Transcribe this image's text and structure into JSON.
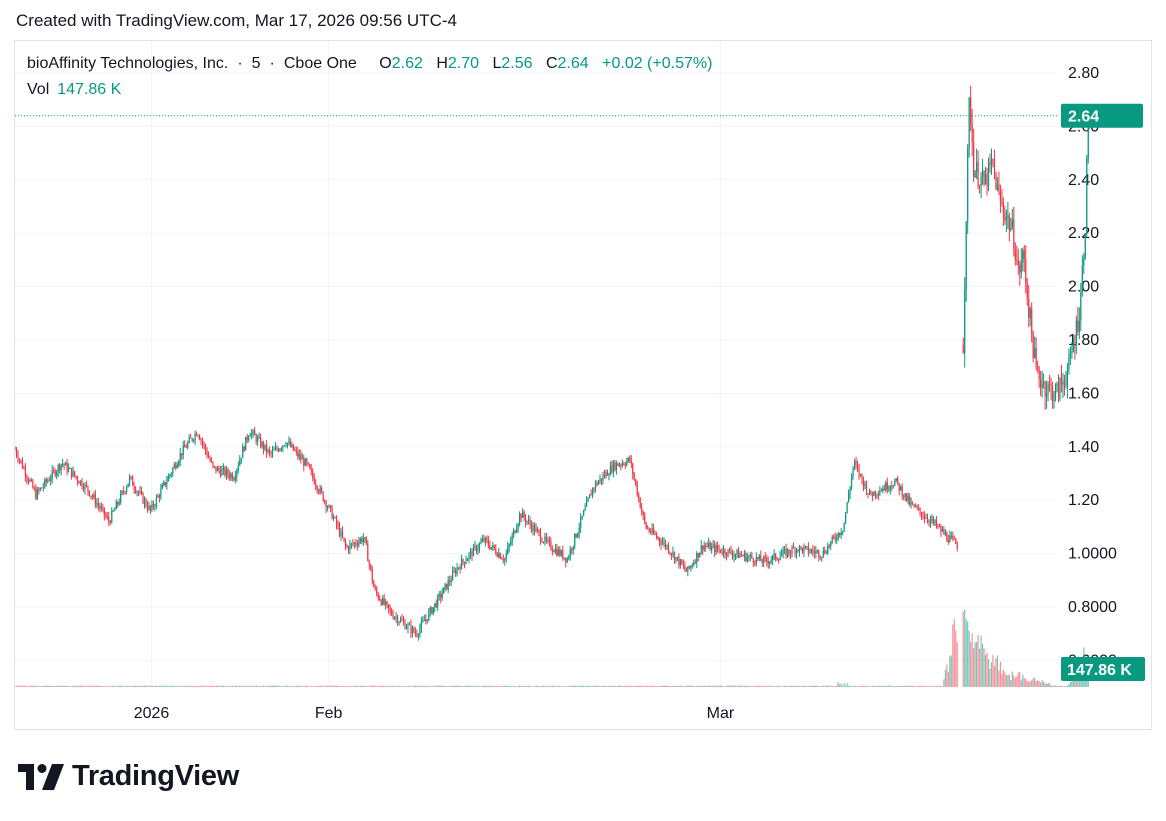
{
  "caption": "Created with TradingView.com, Mar 17, 2026 09:56 UTC-4",
  "legend": {
    "name": "bioAffinity Technologies, Inc.",
    "interval": "5",
    "exchange": "Cboe One",
    "o_label": "O",
    "o": "2.62",
    "h_label": "H",
    "h": "2.70",
    "l_label": "L",
    "l": "2.56",
    "c_label": "C",
    "c": "2.64",
    "change": "+0.02 (+0.57%)",
    "vol_label": "Vol",
    "vol": "147.86 K"
  },
  "brand": "TradingView",
  "colors": {
    "up": "#089981",
    "down": "#f23645",
    "grid": "#f0f3fa",
    "text": "#131722"
  },
  "chart_data": {
    "type": "candlestick",
    "price_ticks": [
      "2.80",
      "2.60",
      "2.40",
      "2.20",
      "2.00",
      "1.80",
      "1.60",
      "1.40",
      "1.20",
      "1.0000",
      "0.8000",
      "0.6000"
    ],
    "ylim": [
      0.5,
      2.92
    ],
    "x_ticks": [
      "2026",
      "Feb",
      "Mar"
    ],
    "last_price": 2.64,
    "last_price_label": "2.64",
    "last_volume_label": "147.86 K",
    "close_path": [
      [
        0.0,
        1.39
      ],
      [
        0.02,
        1.22
      ],
      [
        0.045,
        1.34
      ],
      [
        0.07,
        1.24
      ],
      [
        0.09,
        1.12
      ],
      [
        0.11,
        1.28
      ],
      [
        0.13,
        1.16
      ],
      [
        0.16,
        1.38
      ],
      [
        0.175,
        1.46
      ],
      [
        0.19,
        1.32
      ],
      [
        0.21,
        1.29
      ],
      [
        0.225,
        1.46
      ],
      [
        0.245,
        1.37
      ],
      [
        0.26,
        1.42
      ],
      [
        0.28,
        1.33
      ],
      [
        0.305,
        1.14
      ],
      [
        0.318,
        1.02
      ],
      [
        0.335,
        1.06
      ],
      [
        0.345,
        0.86
      ],
      [
        0.36,
        0.78
      ],
      [
        0.385,
        0.7
      ],
      [
        0.405,
        0.82
      ],
      [
        0.425,
        0.95
      ],
      [
        0.45,
        1.05
      ],
      [
        0.47,
        0.98
      ],
      [
        0.485,
        1.15
      ],
      [
        0.51,
        1.04
      ],
      [
        0.53,
        0.98
      ],
      [
        0.555,
        1.25
      ],
      [
        0.575,
        1.33
      ],
      [
        0.59,
        1.35
      ],
      [
        0.605,
        1.1
      ],
      [
        0.625,
        1.03
      ],
      [
        0.645,
        0.93
      ],
      [
        0.66,
        1.03
      ],
      [
        0.69,
        1.0
      ],
      [
        0.72,
        0.97
      ],
      [
        0.75,
        1.02
      ],
      [
        0.775,
        1.0
      ],
      [
        0.795,
        1.1
      ],
      [
        0.805,
        1.34
      ],
      [
        0.82,
        1.22
      ],
      [
        0.845,
        1.27
      ],
      [
        0.86,
        1.18
      ],
      [
        0.88,
        1.12
      ],
      [
        0.895,
        1.06
      ],
      [
        0.905,
        1.03
      ]
    ],
    "spike_path": [
      [
        0.91,
        1.78
      ],
      [
        0.913,
        2.3
      ],
      [
        0.916,
        2.72
      ],
      [
        0.92,
        2.45
      ],
      [
        0.93,
        2.38
      ],
      [
        0.938,
        2.46
      ],
      [
        0.945,
        2.32
      ],
      [
        0.95,
        2.28
      ],
      [
        0.958,
        2.2
      ],
      [
        0.963,
        2.05
      ],
      [
        0.968,
        2.12
      ],
      [
        0.972,
        1.95
      ],
      [
        0.98,
        1.68
      ],
      [
        0.99,
        1.62
      ],
      [
        1.0,
        1.6
      ],
      [
        1.012,
        1.7
      ],
      [
        1.022,
        1.92
      ],
      [
        1.027,
        2.22
      ],
      [
        1.03,
        2.64
      ]
    ],
    "volume_spikes": [
      [
        0.91,
        0.9
      ],
      [
        0.915,
        0.55
      ],
      [
        0.925,
        0.42
      ],
      [
        0.94,
        0.28
      ],
      [
        0.96,
        0.15
      ],
      [
        0.98,
        0.08
      ],
      [
        1.03,
        0.52
      ]
    ]
  }
}
